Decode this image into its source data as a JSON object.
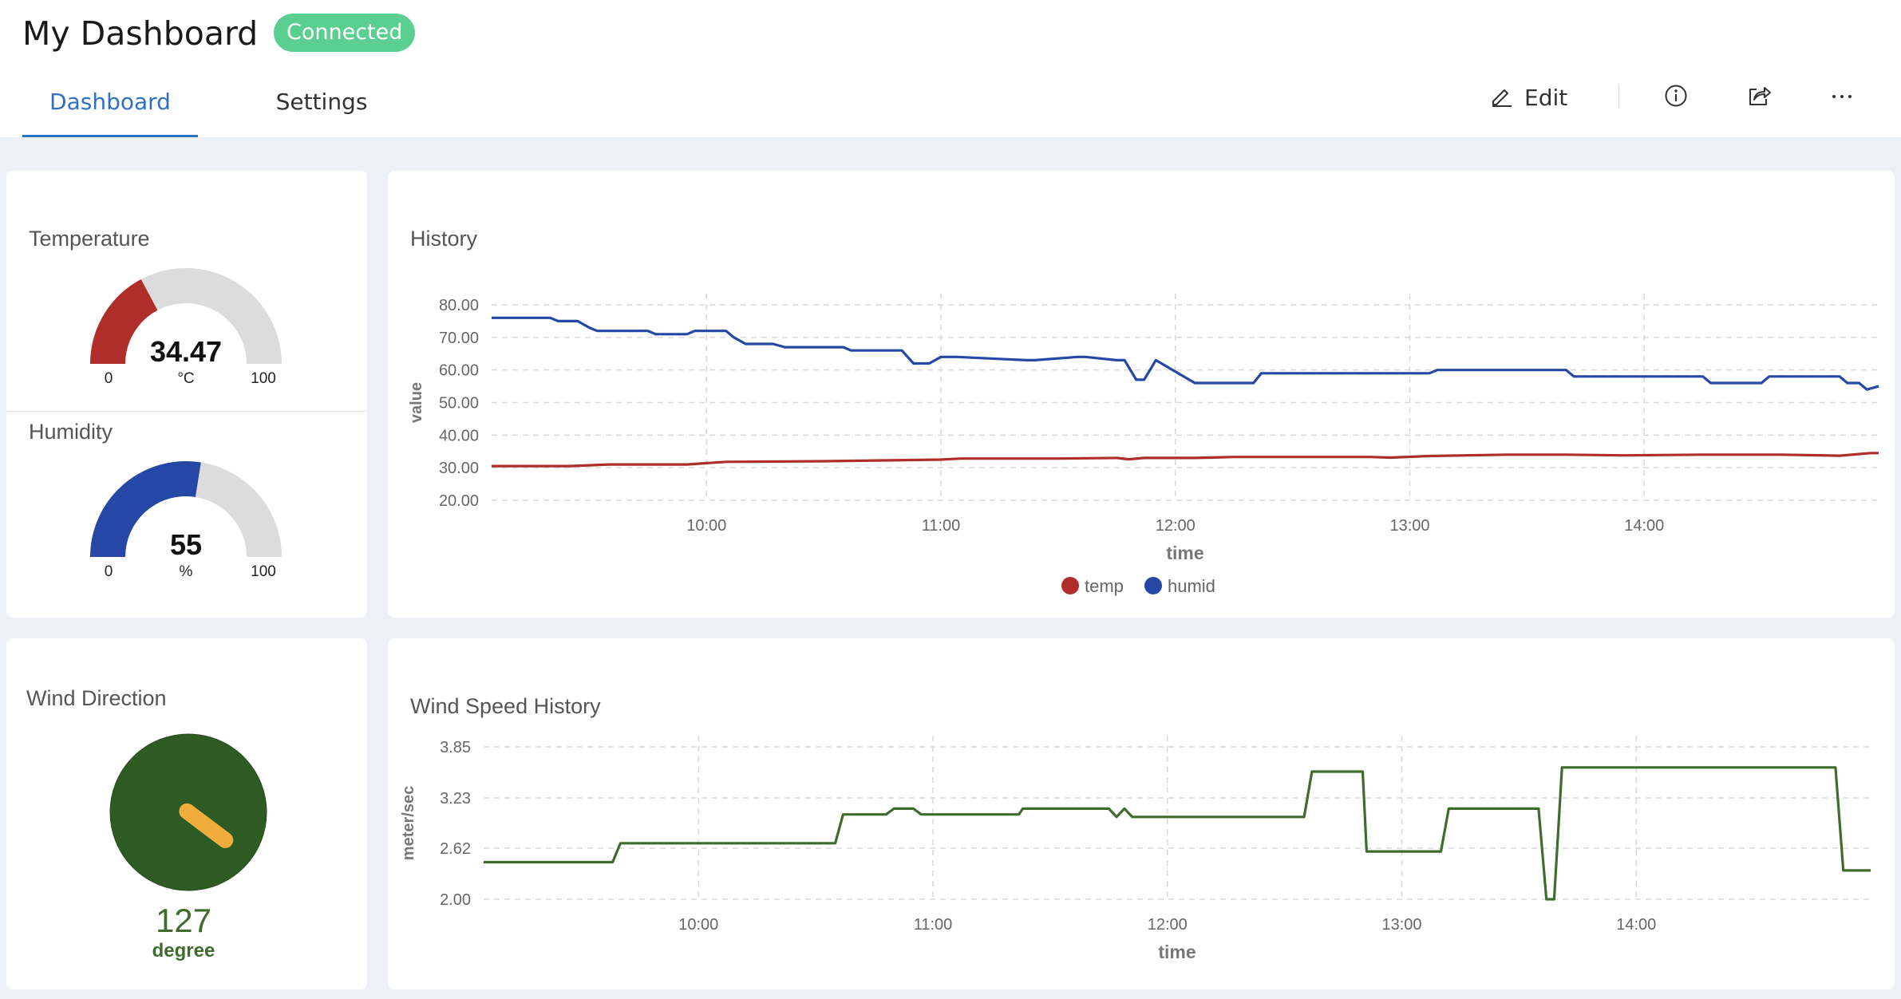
{
  "header": {
    "title": "My Dashboard",
    "status_badge": "Connected",
    "tabs": [
      {
        "label": "Dashboard"
      },
      {
        "label": "Settings"
      }
    ],
    "edit_label": "Edit"
  },
  "colors": {
    "accent": "#2f6fc4",
    "connected": "#5bcf8f",
    "temp": "#b02e2a",
    "humid": "#2547a5",
    "wind": "#3f6b2c",
    "wind_needle": "#f0ad3c",
    "gauge_track": "#dcdcdc"
  },
  "temperature": {
    "title": "Temperature",
    "value": "34.47",
    "value_num": 34.47,
    "unit": "°C",
    "min": "0",
    "max": "100"
  },
  "humidity": {
    "title": "Humidity",
    "value": "55",
    "value_num": 55,
    "unit": "%",
    "min": "0",
    "max": "100"
  },
  "wind_direction": {
    "title": "Wind Direction",
    "value": "127",
    "value_num": 127,
    "unit": "degree"
  },
  "chart_data": [
    {
      "type": "line",
      "title": "History",
      "xlabel": "time",
      "ylabel": "value",
      "ylim": [
        20,
        80
      ],
      "xlim": [
        "09:05",
        "15:00"
      ],
      "yticks": [
        "80.00",
        "70.00",
        "60.00",
        "50.00",
        "40.00",
        "30.00",
        "20.00"
      ],
      "xticks": [
        "10:00",
        "11:00",
        "12:00",
        "13:00",
        "14:00"
      ],
      "grid": true,
      "legend": "bottom",
      "series": [
        {
          "name": "temp",
          "x": [
            "09:05",
            "09:25",
            "09:35",
            "09:55",
            "10:05",
            "10:30",
            "11:00",
            "11:05",
            "11:30",
            "11:45",
            "11:48",
            "11:52",
            "12:05",
            "12:15",
            "12:50",
            "12:55",
            "13:05",
            "13:25",
            "13:40",
            "13:55",
            "14:15",
            "14:35",
            "14:50",
            "14:58",
            "15:00"
          ],
          "y": [
            30.5,
            30.5,
            31,
            31,
            31.8,
            32,
            32.5,
            32.8,
            32.8,
            33,
            32.6,
            33,
            33,
            33.3,
            33.3,
            33.1,
            33.6,
            34,
            34,
            33.8,
            34,
            34,
            33.7,
            34.5,
            34.5
          ]
        },
        {
          "name": "humid",
          "x": [
            "09:05",
            "09:20",
            "09:22",
            "09:27",
            "09:30",
            "09:32",
            "09:45",
            "09:47",
            "09:55",
            "09:57",
            "10:05",
            "10:07",
            "10:10",
            "10:17",
            "10:20",
            "10:35",
            "10:37",
            "10:50",
            "10:53",
            "10:57",
            "11:00",
            "11:02",
            "11:04",
            "11:22",
            "11:24",
            "11:35",
            "11:37",
            "11:45",
            "11:47",
            "11:50",
            "11:52",
            "11:55",
            "12:05",
            "12:07",
            "12:20",
            "12:22",
            "13:05",
            "13:07",
            "13:40",
            "13:42",
            "14:15",
            "14:17",
            "14:30",
            "14:32",
            "14:50",
            "14:52",
            "14:55",
            "14:57",
            "15:00"
          ],
          "y": [
            76,
            76,
            75,
            75,
            73,
            72,
            72,
            71,
            71,
            72,
            72,
            70,
            68,
            68,
            67,
            67,
            66,
            66,
            62,
            62,
            64,
            64,
            64,
            63,
            63,
            64,
            64,
            63,
            63,
            57,
            57,
            63,
            56,
            56,
            56,
            59,
            59,
            60,
            60,
            58,
            58,
            56,
            56,
            58,
            58,
            56,
            56,
            54,
            55
          ]
        }
      ]
    },
    {
      "type": "line",
      "title": "Wind Speed History",
      "xlabel": "time",
      "ylabel": "meter/sec",
      "ylim": [
        2.0,
        3.85
      ],
      "xlim": [
        "09:05",
        "15:00"
      ],
      "yticks": [
        "3.85",
        "3.23",
        "2.62",
        "2.00"
      ],
      "xticks": [
        "10:00",
        "11:00",
        "12:00",
        "13:00",
        "14:00"
      ],
      "grid": true,
      "series": [
        {
          "name": "",
          "x": [
            "09:05",
            "09:38",
            "09:40",
            "10:35",
            "10:37",
            "10:48",
            "10:50",
            "10:55",
            "10:57",
            "11:22",
            "11:23",
            "11:45",
            "11:47",
            "11:49",
            "11:51",
            "11:53",
            "12:35",
            "12:37",
            "12:50",
            "12:51",
            "13:10",
            "13:12",
            "13:35",
            "13:37",
            "13:39",
            "13:41",
            "14:23",
            "14:25",
            "14:33",
            "14:35",
            "14:43",
            "14:45",
            "14:49",
            "14:51",
            "14:53",
            "14:55",
            "15:00"
          ],
          "y": [
            2.45,
            2.45,
            2.68,
            2.68,
            3.03,
            3.03,
            3.1,
            3.1,
            3.03,
            3.03,
            3.1,
            3.1,
            3.0,
            3.1,
            3.0,
            3.0,
            3.0,
            3.55,
            3.55,
            2.58,
            2.58,
            3.1,
            3.1,
            2.0,
            2.0,
            3.6,
            3.6,
            3.6,
            3.6,
            3.6,
            3.6,
            3.6,
            3.6,
            3.6,
            2.35,
            2.35,
            2.35
          ]
        }
      ]
    }
  ]
}
